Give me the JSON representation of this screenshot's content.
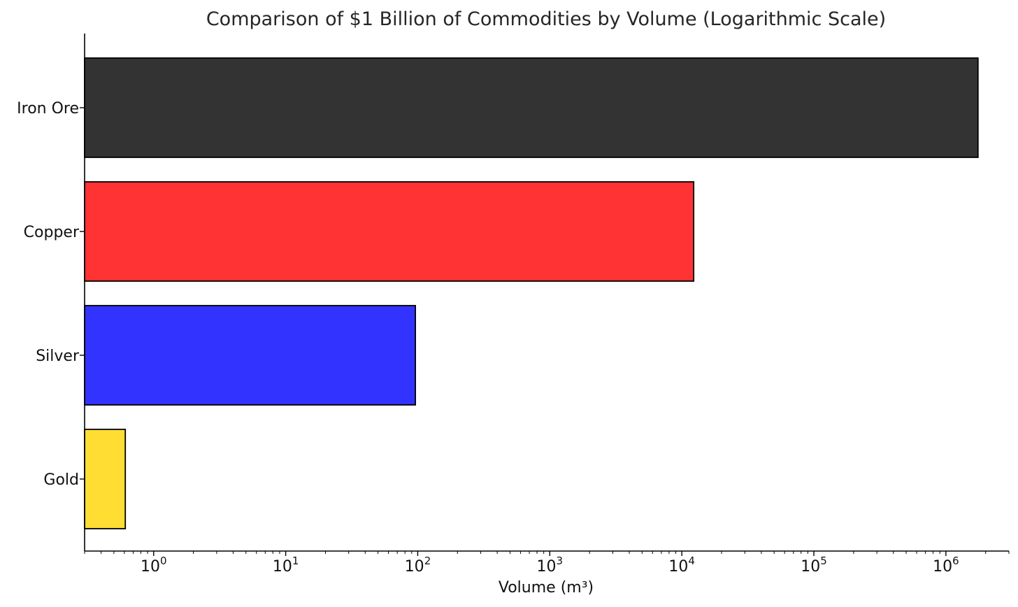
{
  "chart_data": {
    "type": "bar",
    "orientation": "horizontal",
    "title": "Comparison of $1 Billion of Commodities by Volume (Logarithmic Scale)",
    "xlabel": "Volume (m³)",
    "ylabel": "",
    "xscale": "log",
    "xlim": [
      0.3,
      3000000
    ],
    "categories": [
      "Iron Ore",
      "Copper",
      "Silver",
      "Gold"
    ],
    "values": [
      1750000,
      12300,
      96,
      0.61
    ],
    "colors": [
      "#333333",
      "#ff3333",
      "#3333ff",
      "#ffdd33"
    ],
    "edge_color": "#000000",
    "x_tick_labels": [
      {
        "value": 1,
        "base": "10",
        "exp": "0"
      },
      {
        "value": 10,
        "base": "10",
        "exp": "1"
      },
      {
        "value": 100,
        "base": "10",
        "exp": "2"
      },
      {
        "value": 1000,
        "base": "10",
        "exp": "3"
      },
      {
        "value": 10000,
        "base": "10",
        "exp": "4"
      },
      {
        "value": 100000,
        "base": "10",
        "exp": "5"
      },
      {
        "value": 1000000,
        "base": "10",
        "exp": "6"
      }
    ],
    "grid": false
  }
}
